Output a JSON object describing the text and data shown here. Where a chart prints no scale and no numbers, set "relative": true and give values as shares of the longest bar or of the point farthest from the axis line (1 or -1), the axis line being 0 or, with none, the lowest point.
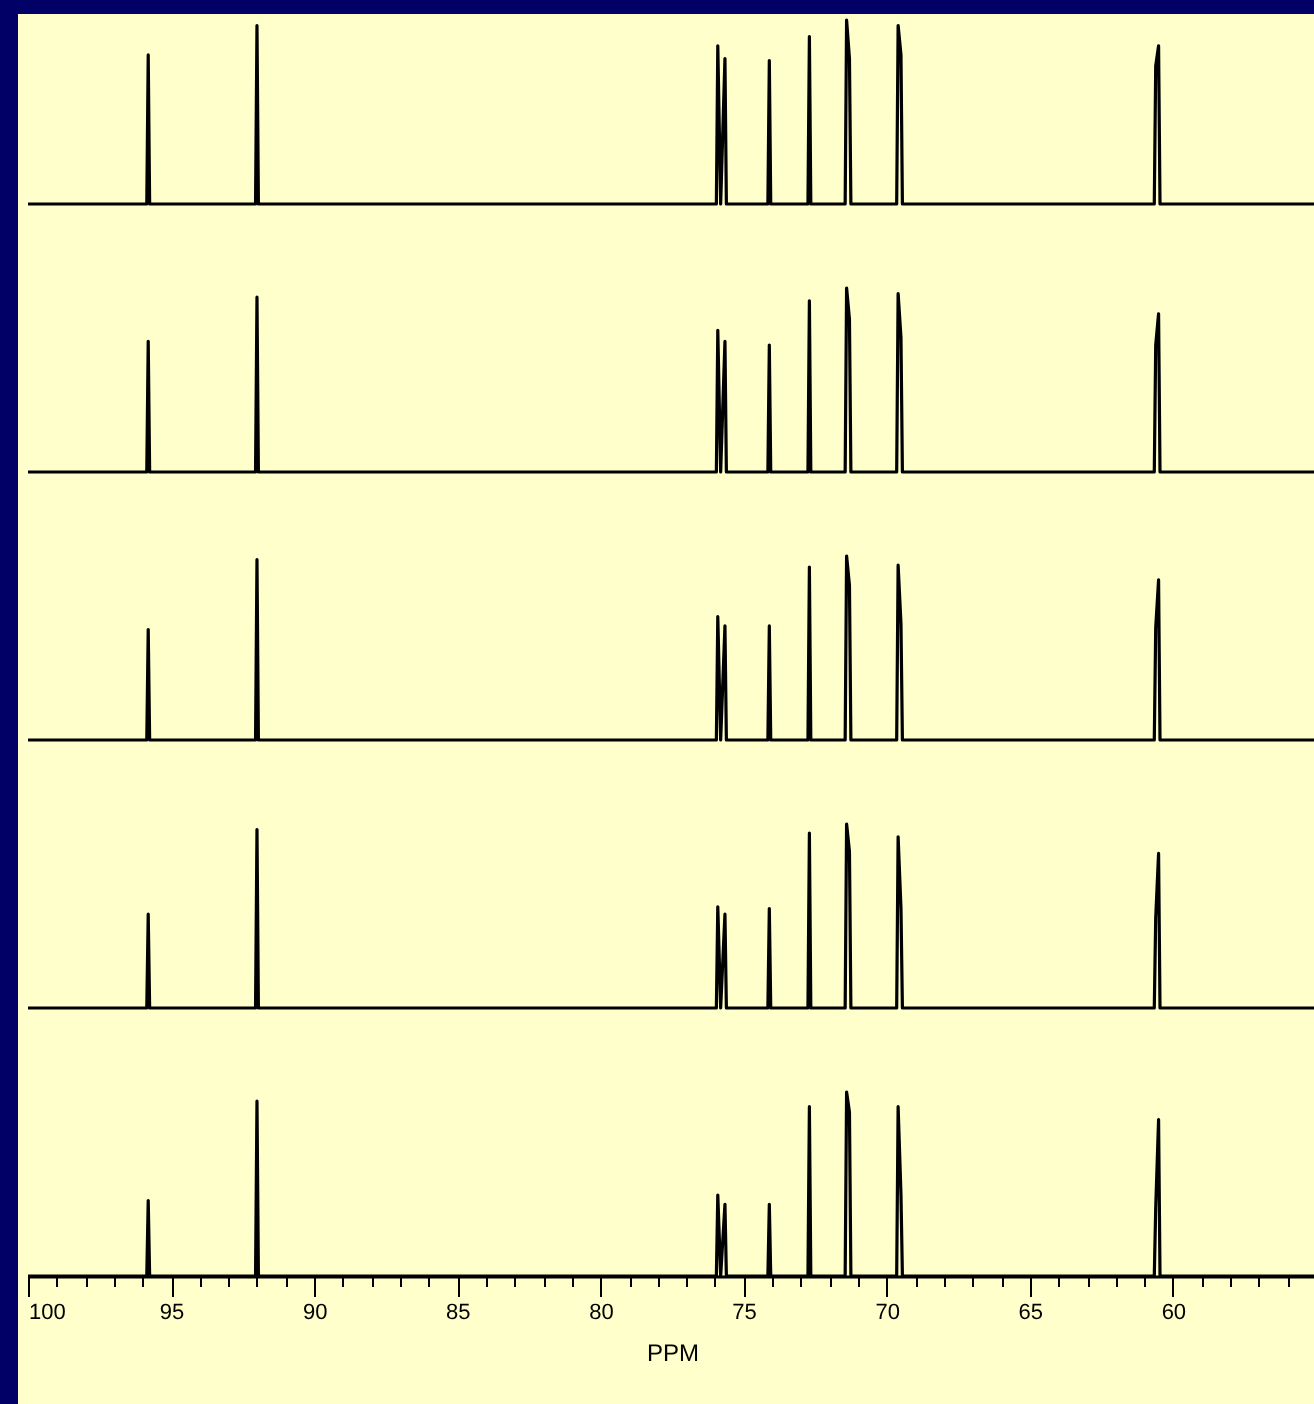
{
  "chart_data": [
    {
      "type": "line",
      "relative": true,
      "color": "#000000",
      "xlim": [
        100,
        55
      ],
      "tick_labels": false,
      "grid": false,
      "marker": "none",
      "line_style": "solid",
      "x": [
        100,
        95.85,
        95.8,
        95.75,
        92.05,
        92.0,
        91.95,
        75.95,
        75.9,
        75.8,
        75.65,
        75.6,
        74.15,
        74.1,
        74.05,
        72.75,
        72.7,
        72.65,
        71.45,
        71.4,
        71.3,
        71.25,
        69.65,
        69.6,
        69.5,
        69.45,
        60.65,
        60.6,
        60.5,
        60.45,
        55
      ],
      "values": [
        0,
        0,
        0.81,
        0,
        0,
        0.97,
        0,
        0,
        0.86,
        0,
        0.79,
        0,
        0,
        0.78,
        0,
        0,
        0.91,
        0,
        0,
        1,
        0.79,
        0,
        0,
        0.97,
        0.81,
        0,
        0,
        0.75,
        0.86,
        0,
        0
      ]
    },
    {
      "type": "line",
      "relative": true,
      "color": "#000000",
      "xlim": [
        100,
        55
      ],
      "tick_labels": false,
      "grid": false,
      "marker": "none",
      "line_style": "solid",
      "x": [
        100,
        95.85,
        95.8,
        95.75,
        92.05,
        92.0,
        91.95,
        75.95,
        75.9,
        75.8,
        75.65,
        75.6,
        74.15,
        74.1,
        74.05,
        72.75,
        72.7,
        72.65,
        71.45,
        71.4,
        71.3,
        71.25,
        69.65,
        69.6,
        69.5,
        69.45,
        60.65,
        60.6,
        60.5,
        60.45,
        55
      ],
      "values": [
        0,
        0,
        0.71,
        0,
        0,
        0.95,
        0,
        0,
        0.77,
        0,
        0.71,
        0,
        0,
        0.69,
        0,
        0,
        0.93,
        0,
        0,
        1,
        0.83,
        0,
        0,
        0.97,
        0.73,
        0,
        0,
        0.69,
        0.86,
        0,
        0
      ]
    },
    {
      "type": "line",
      "relative": true,
      "color": "#000000",
      "xlim": [
        100,
        55
      ],
      "tick_labels": false,
      "grid": false,
      "marker": "none",
      "line_style": "solid",
      "x": [
        100,
        95.85,
        95.8,
        95.75,
        92.05,
        92.0,
        91.95,
        75.95,
        75.9,
        75.8,
        75.65,
        75.6,
        74.15,
        74.1,
        74.05,
        72.75,
        72.7,
        72.65,
        71.45,
        71.4,
        71.3,
        71.25,
        69.65,
        69.6,
        69.5,
        69.45,
        60.65,
        60.6,
        60.5,
        60.45,
        55
      ],
      "values": [
        0,
        0,
        0.6,
        0,
        0,
        0.98,
        0,
        0,
        0.67,
        0,
        0.62,
        0,
        0,
        0.62,
        0,
        0,
        0.94,
        0,
        0,
        1,
        0.84,
        0,
        0,
        0.95,
        0.63,
        0,
        0,
        0.61,
        0.87,
        0,
        0
      ]
    },
    {
      "type": "line",
      "relative": true,
      "color": "#000000",
      "xlim": [
        100,
        55
      ],
      "tick_labels": false,
      "grid": false,
      "marker": "none",
      "line_style": "solid",
      "x": [
        100,
        95.85,
        95.8,
        95.75,
        92.05,
        92.0,
        91.95,
        75.95,
        75.9,
        75.8,
        75.65,
        75.6,
        74.15,
        74.1,
        74.05,
        72.75,
        72.7,
        72.65,
        71.45,
        71.4,
        71.3,
        71.25,
        69.65,
        69.6,
        69.5,
        69.45,
        60.65,
        60.6,
        60.5,
        60.45,
        55
      ],
      "values": [
        0,
        0,
        0.51,
        0,
        0,
        0.97,
        0,
        0,
        0.55,
        0,
        0.51,
        0,
        0,
        0.54,
        0,
        0,
        0.95,
        0,
        0,
        1,
        0.85,
        0,
        0,
        0.93,
        0.54,
        0,
        0,
        0.49,
        0.84,
        0,
        0
      ]
    },
    {
      "type": "line",
      "relative": true,
      "color": "#000000",
      "xlim": [
        100,
        55
      ],
      "tick_labels": "x",
      "grid": false,
      "marker": "none",
      "line_style": "solid",
      "xlabel": "PPM",
      "xticks": [
        100,
        {
          "value": 99,
          "label": null
        },
        {
          "value": 98,
          "label": null
        },
        {
          "value": 97,
          "label": null
        },
        {
          "value": 96,
          "label": null
        },
        95,
        {
          "value": 94,
          "label": null
        },
        {
          "value": 93,
          "label": null
        },
        {
          "value": 92,
          "label": null
        },
        {
          "value": 91,
          "label": null
        },
        90,
        {
          "value": 89,
          "label": null
        },
        {
          "value": 88,
          "label": null
        },
        {
          "value": 87,
          "label": null
        },
        {
          "value": 86,
          "label": null
        },
        85,
        {
          "value": 84,
          "label": null
        },
        {
          "value": 83,
          "label": null
        },
        {
          "value": 82,
          "label": null
        },
        {
          "value": 81,
          "label": null
        },
        80,
        {
          "value": 79,
          "label": null
        },
        {
          "value": 78,
          "label": null
        },
        {
          "value": 77,
          "label": null
        },
        {
          "value": 76,
          "label": null
        },
        75,
        {
          "value": 74,
          "label": null
        },
        {
          "value": 73,
          "label": null
        },
        {
          "value": 72,
          "label": null
        },
        {
          "value": 71,
          "label": null
        },
        70,
        {
          "value": 69,
          "label": null
        },
        {
          "value": 68,
          "label": null
        },
        {
          "value": 67,
          "label": null
        },
        {
          "value": 66,
          "label": null
        },
        65,
        {
          "value": 64,
          "label": null
        },
        {
          "value": 63,
          "label": null
        },
        {
          "value": 62,
          "label": null
        },
        {
          "value": 61,
          "label": null
        },
        60,
        {
          "value": 59,
          "label": null
        },
        {
          "value": 58,
          "label": null
        },
        {
          "value": 57,
          "label": null
        },
        {
          "value": 56,
          "label": null
        }
      ],
      "x": [
        100,
        95.85,
        95.8,
        95.75,
        92.05,
        92.0,
        91.95,
        75.95,
        75.9,
        75.8,
        75.65,
        75.6,
        74.15,
        74.1,
        74.05,
        72.75,
        72.7,
        72.65,
        71.45,
        71.4,
        71.3,
        71.25,
        69.65,
        69.6,
        69.5,
        69.45,
        60.65,
        60.6,
        60.5,
        60.45,
        55
      ],
      "values": [
        0,
        0,
        0.41,
        0,
        0,
        0.95,
        0,
        0,
        0.44,
        0,
        0.39,
        0,
        0,
        0.39,
        0,
        0,
        0.92,
        0,
        0,
        1,
        0.89,
        0,
        0,
        0.92,
        0.44,
        0,
        0,
        0.37,
        0.85,
        0,
        0
      ]
    }
  ]
}
